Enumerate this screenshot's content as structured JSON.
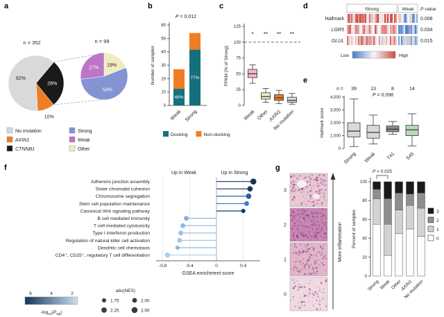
{
  "panel_letters": [
    "a",
    "b",
    "c",
    "d",
    "e",
    "f",
    "g"
  ],
  "chart_data": [
    {
      "panel": "a",
      "type": "pie",
      "pies": [
        {
          "id": "main",
          "n_label": "n = 352",
          "start_angle": -50,
          "slices": [
            {
              "label": "CTNNB1",
              "pct": 28,
              "pct_label": "28%",
              "color": "#1a1a1a"
            },
            {
              "label": "AXIN1",
              "pct": 10,
              "pct_label": "10%",
              "color": "#f07d23"
            },
            {
              "label": "No mutation",
              "pct": 62,
              "pct_label": "62%",
              "color": "#d9d9d9"
            }
          ]
        },
        {
          "id": "expanded",
          "n_label": "n = 99",
          "start_angle": -90,
          "slices": [
            {
              "label": "Other",
              "pct": 19,
              "pct_label": "19%",
              "color": "#f0ecc0"
            },
            {
              "label": "Strong",
              "pct": 54,
              "pct_label": "54%",
              "color": "#8493d2"
            },
            {
              "label": "Weak",
              "pct": 27,
              "pct_label": "27%",
              "color": "#bd75c6"
            }
          ]
        }
      ],
      "legend": {
        "col1": [
          {
            "label": "No mutation",
            "color": "#d9d9d9",
            "italic": false
          },
          {
            "label": "AXIN1",
            "color": "#f07d23",
            "italic": true
          },
          {
            "label": "CTNNB1",
            "color": "#1a1a1a",
            "italic": true
          }
        ],
        "col2": [
          {
            "label": "Strong",
            "color": "#8493d2",
            "italic": false
          },
          {
            "label": "Weak",
            "color": "#bd75c6",
            "italic": false
          },
          {
            "label": "Other",
            "color": "#f0ecc0",
            "italic": false
          }
        ]
      }
    },
    {
      "panel": "b",
      "type": "bar",
      "p_label": "P = 0.012",
      "ylabel": "Number of samples",
      "ylim": [
        0,
        60
      ],
      "yticks": [
        0,
        10,
        20,
        30,
        40,
        50,
        60
      ],
      "categories": [
        "Weak",
        "Strong"
      ],
      "series": [
        {
          "name": "Docking",
          "color": "#15707e",
          "values": [
            12.4,
            41.6
          ]
        },
        {
          "name": "Non-docking",
          "color": "#f07d23",
          "values": [
            14.6,
            12.4
          ]
        }
      ],
      "bar_labels": [
        "46%",
        "77%"
      ]
    },
    {
      "panel": "c",
      "type": "box",
      "ylabel": "FPKM (% of Strong)",
      "ylim": [
        0,
        125
      ],
      "yticks": [
        0,
        25,
        50,
        75,
        100,
        125
      ],
      "ref_line": 100,
      "categories": [
        "Weak",
        "Other",
        "AXIN1",
        "No mutation"
      ],
      "italic_categories": [
        "AXIN1"
      ],
      "significance": [
        "*",
        "**",
        "**",
        "**"
      ],
      "boxes": [
        {
          "lo": 35,
          "q1": 44,
          "med": 50,
          "q3": 57,
          "hi": 64,
          "color": "#f5b8c8"
        },
        {
          "lo": 5,
          "q1": 10,
          "med": 14,
          "q3": 20,
          "hi": 27,
          "color": "#f0ecc0"
        },
        {
          "lo": 3,
          "q1": 8,
          "med": 12,
          "q3": 17,
          "hi": 24,
          "color": "#f07d23"
        },
        {
          "lo": 2,
          "q1": 5,
          "med": 8,
          "q3": 13,
          "hi": 19,
          "color": "#d9d9d9"
        }
      ]
    },
    {
      "panel": "d",
      "type": "heatmap",
      "groups": [
        {
          "label": "Strong",
          "cols": 36
        },
        {
          "label": "Weak",
          "cols": 14
        }
      ],
      "rows": [
        {
          "label": "Hallmark",
          "italic": false,
          "p_value": "0.008",
          "strong_bias": 0.45,
          "weak_bias": -0.3
        },
        {
          "label": "LGR5",
          "italic": true,
          "p_value": "0.034",
          "strong_bias": 0.35,
          "weak_bias": -0.35
        },
        {
          "label": "GLUL",
          "italic": true,
          "p_value": "0.015",
          "strong_bias": 0.3,
          "weak_bias": -0.3
        }
      ],
      "p_header": "P value",
      "scale": {
        "low_label": "Low",
        "high_label": "High",
        "low_color": "#4a7cc7",
        "mid_color": "#f7f7f7",
        "high_color": "#cf4a44"
      }
    },
    {
      "panel": "e",
      "type": "box",
      "n_prefix": "n =",
      "n_values": [
        "39",
        "13",
        "8",
        "14"
      ],
      "p_label": "P = 0.098",
      "ylabel": "Hallmark score",
      "ylim": [
        0,
        4000
      ],
      "yticks": [
        0,
        1000,
        2000,
        3000,
        4000
      ],
      "ytick_labels": [
        "0",
        "1,000",
        "2,000",
        "3,000",
        "4,000"
      ],
      "categories": [
        "Strong",
        "Weak",
        "T41",
        "S45"
      ],
      "boxes": [
        {
          "lo": 150,
          "q1": 900,
          "med": 1350,
          "q3": 2000,
          "hi": 3850,
          "color": "#d9d9d9"
        },
        {
          "lo": 350,
          "q1": 800,
          "med": 1250,
          "q3": 1800,
          "hi": 2600,
          "color": "#d9d9d9"
        },
        {
          "lo": 1100,
          "q1": 1300,
          "med": 1500,
          "q3": 1750,
          "hi": 2100,
          "color": "#8c8c8c"
        },
        {
          "lo": 200,
          "q1": 1000,
          "med": 1450,
          "q3": 1800,
          "hi": 2700,
          "color": "#b7d9b9"
        }
      ]
    },
    {
      "panel": "f",
      "type": "lollipop",
      "header_left": "Up in Weak",
      "header_right": "Up in Strong",
      "xlabel": "GSEA enrichment score",
      "xlim": [
        -0.9,
        0.65
      ],
      "xticks": [
        -0.8,
        -0.4,
        0,
        0.4
      ],
      "xtick_labels": [
        "-0.8",
        "-0.4",
        "0",
        "0.4"
      ],
      "items": [
        {
          "label": "Adherens junction assembly",
          "value": 0.55,
          "nes": 2.5,
          "color": "#14365c"
        },
        {
          "label": "Sister chromatid cohesion",
          "value": 0.5,
          "nes": 2.25,
          "color": "#14365c"
        },
        {
          "label": "Chromosome segregation",
          "value": 0.48,
          "nes": 2.25,
          "color": "#2a5d9f"
        },
        {
          "label": "Stem cell population maintenance",
          "value": 0.45,
          "nes": 2.0,
          "color": "#3f7cbf"
        },
        {
          "label": "Canonical Wnt signaling pathway",
          "value": 0.4,
          "nes": 1.75,
          "color": "#14365c"
        },
        {
          "label": "B cell mediated immunity",
          "value": -0.45,
          "nes": 2.0,
          "color": "#7fb0da"
        },
        {
          "label": "T cell mediated cytotoxicity",
          "value": -0.5,
          "nes": 2.0,
          "color": "#8db9de"
        },
        {
          "label": "Type I interferon production",
          "value": -0.53,
          "nes": 2.0,
          "color": "#97c0e2"
        },
        {
          "label": "Regulation of natural killer cell activation",
          "value": -0.55,
          "nes": 2.0,
          "color": "#a2c7e5"
        },
        {
          "label": "Dendritic cell chemotaxis",
          "value": -0.58,
          "nes": 1.75,
          "color": "#8db9de"
        },
        {
          "label": "CD4⁺, CD25⁺, regulatory T cell differentiation",
          "value": -0.73,
          "nes": 2.25,
          "color": "#aed0ea"
        }
      ],
      "color_legend": {
        "label_parts": {
          "pre": "-log",
          "sub": "10",
          "open": "(",
          "p": "P",
          "sub2": "adj",
          "close": ")"
        },
        "ticks": [
          "6",
          "4",
          "2"
        ],
        "dark": "#14365c",
        "light": "#c9dff0"
      },
      "size_legend": {
        "title": "abs(NES)",
        "items": [
          {
            "label": "1.75",
            "nes": 1.75
          },
          {
            "label": "2.00",
            "nes": 2.0
          },
          {
            "label": "2.25",
            "nes": 2.25
          },
          {
            "label": "2.50",
            "nes": 2.5
          }
        ]
      }
    },
    {
      "panel": "g",
      "type": "stacked_bar",
      "image_labels": [
        "3",
        "2",
        "1",
        "0"
      ],
      "arrow_label": "More inflammation",
      "p_label": "P = 0.025",
      "ylabel": "Percent of samples",
      "ylim": [
        0,
        100
      ],
      "yticks": [
        0,
        20,
        40,
        60,
        80,
        100
      ],
      "categories": [
        "Strong",
        "Weak",
        "Other",
        "AXIN1",
        "No mutation"
      ],
      "italic_categories": [
        "AXIN1"
      ],
      "series": [
        {
          "name": "0",
          "color": "#ffffff",
          "values": [
            55,
            22,
            45,
            50,
            42
          ]
        },
        {
          "name": "1",
          "color": "#d2d2d2",
          "values": [
            27,
            33,
            25,
            25,
            30
          ]
        },
        {
          "name": "2",
          "color": "#8e8e8e",
          "values": [
            10,
            27,
            18,
            12,
            16
          ]
        },
        {
          "name": "3",
          "color": "#1a1a1a",
          "values": [
            8,
            18,
            12,
            13,
            12
          ]
        }
      ]
    }
  ]
}
